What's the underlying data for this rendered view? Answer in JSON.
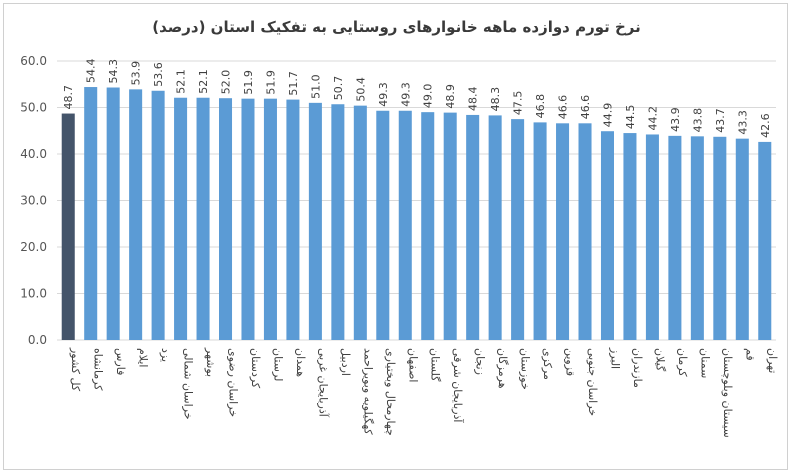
{
  "chart_data": {
    "type": "bar",
    "title": "نرخ تورم دوازده ماهه خانوارهای روستایی به تفکیک استان (درصد)",
    "xlabel": "",
    "ylabel": "",
    "ylim": [
      0,
      60
    ],
    "yticks": [
      "0.0",
      "10.0",
      "20.0",
      "30.0",
      "40.0",
      "50.0",
      "60.0"
    ],
    "grid": true,
    "colors": {
      "highlight": "#44546a",
      "bar": "#5b9bd5"
    },
    "categories": [
      "کل کشور",
      "کرمانشاه",
      "فارس",
      "ایلام",
      "یزد",
      "خراسان شمالی",
      "بوشهر",
      "خراسان رضوی",
      "کردستان",
      "لرستان",
      "همدان",
      "آذربایجان غربی",
      "اردبیل",
      "کهگیلویه وبویراحمد",
      "چهارمحال وبختیاری",
      "اصفهان",
      "گلستان",
      "آذربایجان شرقی",
      "زنجان",
      "هرمزگان",
      "خوزستان",
      "مرکزی",
      "قزوین",
      "خراسان جنوبی",
      "البرز",
      "مازندران",
      "گیلان",
      "کرمان",
      "سمنان",
      "سیستان وبلوچستان",
      "قم",
      "تهران"
    ],
    "values": [
      48.7,
      54.4,
      54.3,
      53.9,
      53.6,
      52.1,
      52.1,
      52.0,
      51.9,
      51.9,
      51.7,
      51.0,
      50.7,
      50.4,
      49.3,
      49.3,
      49.0,
      48.9,
      48.4,
      48.3,
      47.5,
      46.8,
      46.6,
      46.6,
      44.9,
      44.5,
      44.2,
      43.9,
      43.8,
      43.7,
      43.3,
      42.6
    ],
    "value_labels": [
      "48.7",
      "54.4",
      "54.3",
      "53.9",
      "53.6",
      "52.1",
      "52.1",
      "52.0",
      "51.9",
      "51.9",
      "51.7",
      "51.0",
      "50.7",
      "50.4",
      "49.3",
      "49.3",
      "49.0",
      "48.9",
      "48.4",
      "48.3",
      "47.5",
      "46.8",
      "46.6",
      "46.6",
      "44.9",
      "44.5",
      "44.2",
      "43.9",
      "43.8",
      "43.7",
      "43.3",
      "42.6"
    ]
  }
}
